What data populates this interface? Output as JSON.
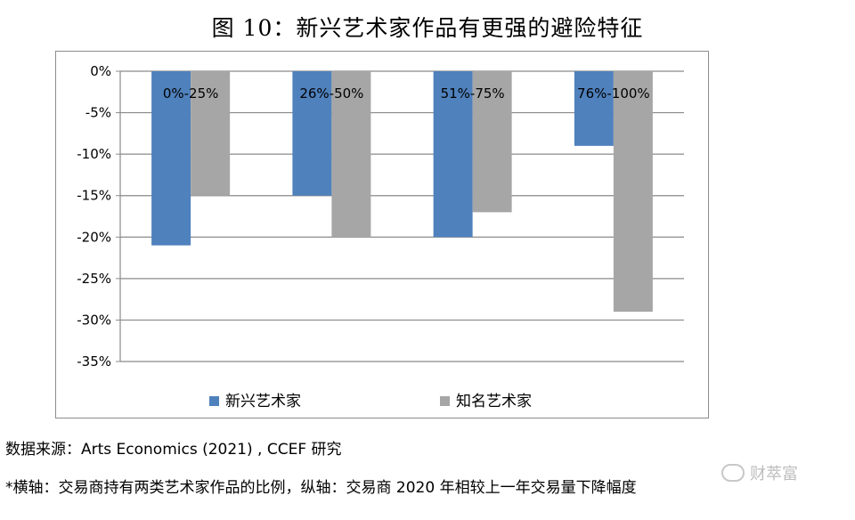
{
  "title": "图 10：新兴艺术家作品有更强的避险特征",
  "chart_data": {
    "type": "bar",
    "categories": [
      "0%-25%",
      "26%-50%",
      "51%-75%",
      "76%-100%"
    ],
    "series": [
      {
        "name": "新兴艺术家",
        "color": "#4f81bd",
        "values": [
          -21,
          -15,
          -20,
          -9
        ]
      },
      {
        "name": "知名艺术家",
        "color": "#a6a6a6",
        "values": [
          -15,
          -20,
          -17,
          -29
        ]
      }
    ],
    "ylim": [
      -35,
      0
    ],
    "yticks": [
      "0%",
      "-5%",
      "-10%",
      "-15%",
      "-20%",
      "-25%",
      "-30%",
      "-35%"
    ],
    "grid": true,
    "legend": "bottom"
  },
  "source": "数据来源：Arts Economics (2021) , CCEF 研究",
  "note": "*横轴：交易商持有两类艺术家作品的比例，纵轴：交易商 2020 年相较上一年交易量下降幅度",
  "watermark": "财萃富"
}
